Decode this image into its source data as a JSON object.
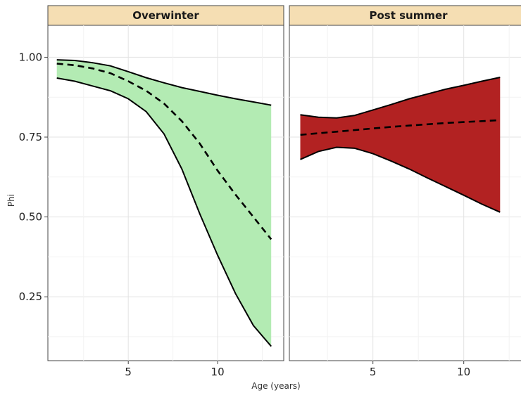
{
  "chart_data": {
    "type": "area",
    "ylabel": "Phi",
    "xlabel": "Age (years)",
    "ylim": [
      0.05,
      1.1
    ],
    "y_ticks": [
      0.25,
      0.5,
      0.75,
      1.0
    ],
    "y_tick_labels": [
      "0.25",
      "0.50",
      "0.75",
      "1.00"
    ],
    "x_ticks": [
      5,
      10
    ],
    "x_tick_labels": [
      "5",
      "10"
    ],
    "grid": true,
    "panels": [
      {
        "title": "Overwinter",
        "fill_color": "#b3ebb3",
        "xlim": [
          0.5,
          13.7
        ],
        "x": [
          1,
          2,
          3,
          4,
          5,
          6,
          7,
          8,
          9,
          10,
          11,
          12,
          13
        ],
        "mean": [
          0.98,
          0.975,
          0.965,
          0.95,
          0.925,
          0.895,
          0.855,
          0.8,
          0.73,
          0.645,
          0.57,
          0.5,
          0.43
        ],
        "upper": [
          0.992,
          0.99,
          0.983,
          0.973,
          0.955,
          0.936,
          0.92,
          0.905,
          0.893,
          0.881,
          0.87,
          0.86,
          0.85
        ],
        "lower": [
          0.935,
          0.925,
          0.91,
          0.895,
          0.87,
          0.83,
          0.76,
          0.65,
          0.51,
          0.38,
          0.26,
          0.16,
          0.095
        ]
      },
      {
        "title": "Post summer",
        "fill_color": "#b22222",
        "xlim": [
          0.4,
          13.5
        ],
        "x": [
          1,
          2,
          3,
          4,
          5,
          6,
          7,
          8,
          9,
          10,
          11,
          12
        ],
        "mean": [
          0.757,
          0.762,
          0.767,
          0.772,
          0.777,
          0.782,
          0.786,
          0.79,
          0.794,
          0.797,
          0.8,
          0.803
        ],
        "upper": [
          0.82,
          0.812,
          0.81,
          0.818,
          0.835,
          0.852,
          0.87,
          0.885,
          0.9,
          0.912,
          0.925,
          0.937
        ],
        "lower": [
          0.68,
          0.705,
          0.718,
          0.715,
          0.698,
          0.675,
          0.65,
          0.622,
          0.595,
          0.568,
          0.54,
          0.515
        ]
      }
    ]
  }
}
